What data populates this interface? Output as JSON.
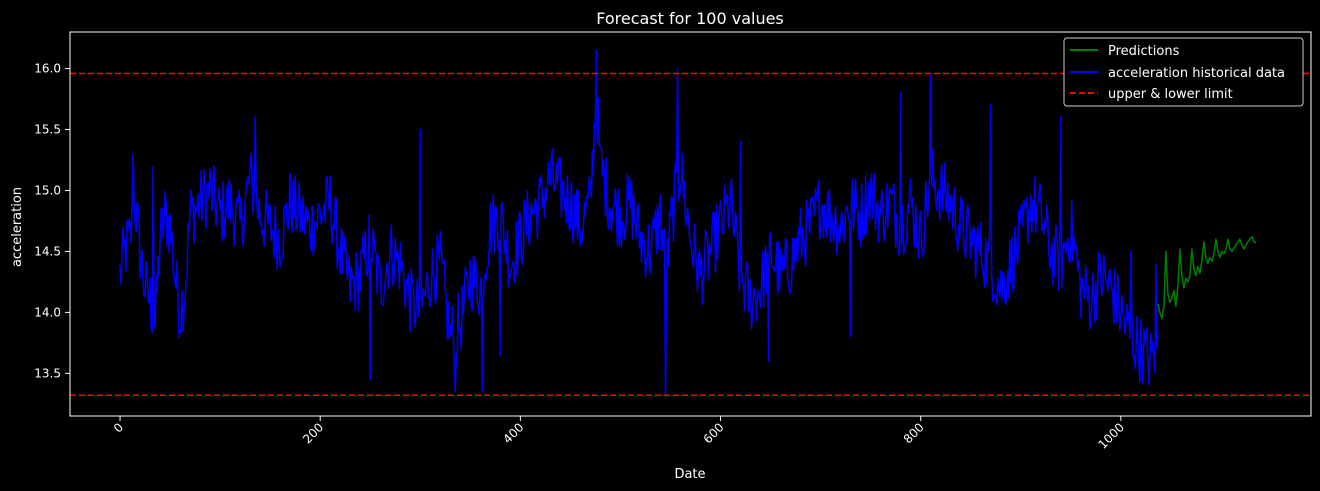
{
  "chart_data": {
    "type": "line",
    "title": "Forecast for 100 values",
    "xlabel": "Date",
    "ylabel": "acceleration",
    "xlim": [
      -50,
      1190
    ],
    "ylim": [
      13.15,
      16.3
    ],
    "xticks": [
      0,
      200,
      400,
      600,
      800,
      1000
    ],
    "yticks": [
      13.5,
      14.0,
      14.5,
      15.0,
      15.5,
      16.0
    ],
    "xtick_labels": [
      "0",
      "200",
      "400",
      "600",
      "800",
      "1000"
    ],
    "ytick_labels": [
      "13.5",
      "14.0",
      "14.5",
      "15.0",
      "15.5",
      "16.0"
    ],
    "grid": false,
    "legend_position": "top-right",
    "legend": {
      "predictions": "Predictions",
      "historical": "acceleration historical data",
      "limits": "upper & lower limit"
    },
    "colors": {
      "predictions": "#008000",
      "historical": "#0000ff",
      "limits": "#ff0000",
      "background": "#000000"
    },
    "upper_limit": 15.96,
    "lower_limit": 13.32,
    "history_anchors": {
      "x": [
        0,
        5,
        10,
        15,
        20,
        25,
        30,
        35,
        40,
        45,
        50,
        55,
        60,
        65,
        70,
        80,
        90,
        100,
        110,
        120,
        130,
        140,
        150,
        160,
        170,
        180,
        190,
        200,
        210,
        220,
        230,
        240,
        250,
        260,
        270,
        280,
        290,
        300,
        310,
        320,
        330,
        340,
        350,
        360,
        370,
        380,
        390,
        400,
        410,
        420,
        430,
        440,
        450,
        460,
        470,
        476,
        480,
        490,
        500,
        510,
        520,
        530,
        540,
        546,
        550,
        560,
        570,
        580,
        590,
        600,
        610,
        620,
        630,
        640,
        650,
        660,
        670,
        680,
        690,
        700,
        710,
        720,
        730,
        740,
        750,
        760,
        770,
        780,
        790,
        800,
        810,
        820,
        830,
        840,
        850,
        860,
        870,
        880,
        890,
        900,
        910,
        920,
        930,
        940,
        950,
        960,
        970,
        980,
        990,
        1000,
        1010,
        1020,
        1030,
        1037
      ],
      "y": [
        14.3,
        14.5,
        14.6,
        14.9,
        14.5,
        14.2,
        14.1,
        13.9,
        14.6,
        14.8,
        14.7,
        14.3,
        14.0,
        14.2,
        14.8,
        14.9,
        15.0,
        14.8,
        14.9,
        14.7,
        15.1,
        14.8,
        14.7,
        14.6,
        14.9,
        14.8,
        14.7,
        14.8,
        14.9,
        14.5,
        14.2,
        14.3,
        14.6,
        14.2,
        14.5,
        14.4,
        14.1,
        14.0,
        14.3,
        14.4,
        13.8,
        13.9,
        14.3,
        14.2,
        14.7,
        14.8,
        14.4,
        14.6,
        14.8,
        14.9,
        15.1,
        15.0,
        14.9,
        14.7,
        14.9,
        15.8,
        15.2,
        14.9,
        14.8,
        14.9,
        14.6,
        14.5,
        14.8,
        14.3,
        14.7,
        15.2,
        14.6,
        14.3,
        14.5,
        14.7,
        14.9,
        14.3,
        14.1,
        14.2,
        14.5,
        14.3,
        14.4,
        14.6,
        14.7,
        14.9,
        14.8,
        14.7,
        14.9,
        14.8,
        15.0,
        14.8,
        14.9,
        14.7,
        14.9,
        14.6,
        15.1,
        15.0,
        14.9,
        14.7,
        14.6,
        14.5,
        14.4,
        14.2,
        14.4,
        14.6,
        14.9,
        14.8,
        14.5,
        14.4,
        14.7,
        14.2,
        14.1,
        14.3,
        14.2,
        14.0,
        13.8,
        13.7,
        13.6,
        13.75
      ],
      "noise_amplitude": 0.28
    },
    "history_spikes": {
      "x": [
        13,
        33,
        135,
        250,
        300,
        335,
        362,
        380,
        476,
        545,
        557,
        620,
        648,
        730,
        780,
        810,
        870,
        940,
        1010,
        1035
      ],
      "y": [
        15.3,
        15.2,
        15.6,
        13.45,
        15.5,
        13.35,
        13.35,
        13.65,
        16.15,
        13.31,
        16.0,
        15.4,
        13.6,
        13.8,
        15.8,
        15.95,
        15.7,
        15.6,
        14.5,
        14.4
      ]
    },
    "predictions": {
      "x": [
        1037,
        1039,
        1041,
        1043,
        1045,
        1047,
        1049,
        1051,
        1053,
        1055,
        1057,
        1059,
        1061,
        1063,
        1065,
        1067,
        1069,
        1071,
        1073,
        1075,
        1077,
        1079,
        1081,
        1083,
        1085,
        1087,
        1089,
        1091,
        1093,
        1095,
        1097,
        1099,
        1101,
        1103,
        1105,
        1107,
        1109,
        1111,
        1113,
        1115,
        1117,
        1119,
        1121,
        1123,
        1125,
        1127,
        1129,
        1131,
        1133,
        1135
      ],
      "y": [
        14.07,
        14.0,
        13.95,
        14.05,
        14.5,
        14.15,
        14.08,
        14.12,
        14.18,
        14.05,
        14.22,
        14.52,
        14.3,
        14.2,
        14.28,
        14.25,
        14.3,
        14.52,
        14.35,
        14.3,
        14.38,
        14.32,
        14.42,
        14.58,
        14.45,
        14.4,
        14.45,
        14.42,
        14.48,
        14.6,
        14.5,
        14.45,
        14.5,
        14.48,
        14.52,
        14.6,
        14.52,
        14.5,
        14.53,
        14.55,
        14.58,
        14.6,
        14.55,
        14.52,
        14.55,
        14.58,
        14.6,
        14.62,
        14.58,
        14.57
      ]
    }
  }
}
